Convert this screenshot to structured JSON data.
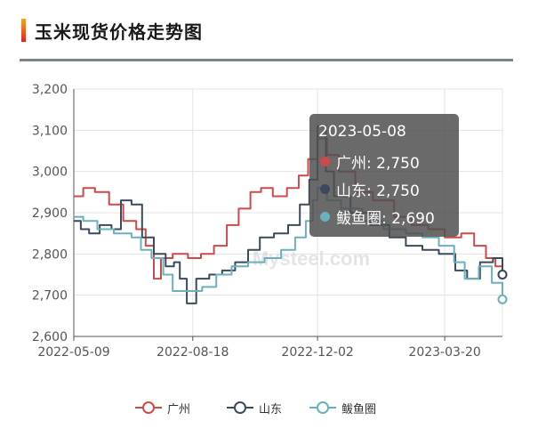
{
  "header": {
    "title": "玉米现货价格走势图"
  },
  "watermark": "Mysteel.com",
  "tooltip": {
    "date": "2023-05-08",
    "rows": [
      {
        "label": "广州: 2,750",
        "color": "#cc4a4a"
      },
      {
        "label": "山东: 2,750",
        "color": "#3b4a5c"
      },
      {
        "label": "鲅鱼圈: 2,690",
        "color": "#6ab0bd"
      }
    ]
  },
  "chart_data": {
    "type": "line",
    "ylim": [
      2600,
      3200
    ],
    "yticks": [
      "2,600",
      "2,700",
      "2,800",
      "2,900",
      "3,000",
      "3,100",
      "3,200"
    ],
    "xticks": [
      "2022-05-09",
      "2022-08-18",
      "2022-12-02",
      "2023-03-20"
    ],
    "xrange": [
      "2022-05-09",
      "2023-05-08"
    ],
    "grid": true,
    "legend_position": "bottom",
    "series": [
      {
        "name": "广州",
        "color": "#cc4a4a",
        "points": [
          [
            "2022-05-09",
            2940
          ],
          [
            "2022-05-17",
            2960
          ],
          [
            "2022-05-27",
            2950
          ],
          [
            "2022-06-08",
            2920
          ],
          [
            "2022-06-20",
            2880
          ],
          [
            "2022-07-01",
            2860
          ],
          [
            "2022-07-09",
            2820
          ],
          [
            "2022-07-16",
            2740
          ],
          [
            "2022-07-22",
            2790
          ],
          [
            "2022-08-01",
            2800
          ],
          [
            "2022-08-14",
            2790
          ],
          [
            "2022-08-25",
            2800
          ],
          [
            "2022-09-05",
            2820
          ],
          [
            "2022-09-16",
            2870
          ],
          [
            "2022-09-26",
            2910
          ],
          [
            "2022-10-06",
            2950
          ],
          [
            "2022-10-15",
            2960
          ],
          [
            "2022-10-25",
            2940
          ],
          [
            "2022-11-06",
            2960
          ],
          [
            "2022-11-16",
            2990
          ],
          [
            "2022-11-24",
            3030
          ],
          [
            "2022-12-02",
            3080
          ],
          [
            "2022-12-10",
            3040
          ],
          [
            "2022-12-20",
            3000
          ],
          [
            "2023-01-03",
            2950
          ],
          [
            "2023-01-18",
            2930
          ],
          [
            "2023-02-05",
            2890
          ],
          [
            "2023-02-20",
            2870
          ],
          [
            "2023-03-06",
            2860
          ],
          [
            "2023-03-20",
            2840
          ],
          [
            "2023-04-03",
            2850
          ],
          [
            "2023-04-14",
            2820
          ],
          [
            "2023-04-24",
            2790
          ],
          [
            "2023-05-02",
            2770
          ],
          [
            "2023-05-08",
            2750
          ]
        ]
      },
      {
        "name": "山东",
        "color": "#3b4a5c",
        "points": [
          [
            "2022-05-09",
            2880
          ],
          [
            "2022-05-15",
            2860
          ],
          [
            "2022-05-22",
            2850
          ],
          [
            "2022-05-31",
            2870
          ],
          [
            "2022-06-10",
            2860
          ],
          [
            "2022-06-18",
            2930
          ],
          [
            "2022-06-27",
            2920
          ],
          [
            "2022-07-06",
            2840
          ],
          [
            "2022-07-16",
            2800
          ],
          [
            "2022-07-26",
            2770
          ],
          [
            "2022-08-02",
            2780
          ],
          [
            "2022-08-07",
            2740
          ],
          [
            "2022-08-13",
            2680
          ],
          [
            "2022-08-21",
            2740
          ],
          [
            "2022-09-01",
            2750
          ],
          [
            "2022-09-12",
            2760
          ],
          [
            "2022-09-23",
            2780
          ],
          [
            "2022-10-04",
            2810
          ],
          [
            "2022-10-14",
            2840
          ],
          [
            "2022-10-26",
            2850
          ],
          [
            "2022-11-07",
            2870
          ],
          [
            "2022-11-17",
            2920
          ],
          [
            "2022-11-25",
            2980
          ],
          [
            "2022-12-02",
            3110
          ],
          [
            "2022-12-09",
            3000
          ],
          [
            "2022-12-16",
            2940
          ],
          [
            "2022-12-30",
            2900
          ],
          [
            "2023-01-16",
            2870
          ],
          [
            "2023-02-01",
            2840
          ],
          [
            "2023-02-15",
            2820
          ],
          [
            "2023-03-01",
            2810
          ],
          [
            "2023-03-15",
            2800
          ],
          [
            "2023-03-29",
            2760
          ],
          [
            "2023-04-08",
            2740
          ],
          [
            "2023-04-19",
            2780
          ],
          [
            "2023-04-30",
            2790
          ],
          [
            "2023-05-08",
            2750
          ]
        ]
      },
      {
        "name": "鲅鱼圈",
        "color": "#6ab0bd",
        "points": [
          [
            "2022-05-09",
            2890
          ],
          [
            "2022-05-17",
            2880
          ],
          [
            "2022-05-29",
            2860
          ],
          [
            "2022-06-12",
            2850
          ],
          [
            "2022-06-27",
            2840
          ],
          [
            "2022-07-05",
            2810
          ],
          [
            "2022-07-14",
            2790
          ],
          [
            "2022-07-24",
            2750
          ],
          [
            "2022-08-01",
            2710
          ],
          [
            "2022-08-14",
            2710
          ],
          [
            "2022-08-26",
            2720
          ],
          [
            "2022-09-07",
            2750
          ],
          [
            "2022-09-20",
            2770
          ],
          [
            "2022-10-04",
            2780
          ],
          [
            "2022-10-18",
            2790
          ],
          [
            "2022-11-01",
            2810
          ],
          [
            "2022-11-13",
            2840
          ],
          [
            "2022-11-22",
            2880
          ],
          [
            "2022-11-28",
            2930
          ],
          [
            "2022-12-02",
            2960
          ],
          [
            "2022-12-10",
            2930
          ],
          [
            "2022-12-22",
            2910
          ],
          [
            "2023-01-09",
            2880
          ],
          [
            "2023-01-27",
            2860
          ],
          [
            "2023-02-15",
            2850
          ],
          [
            "2023-03-01",
            2840
          ],
          [
            "2023-03-15",
            2820
          ],
          [
            "2023-03-28",
            2780
          ],
          [
            "2023-04-06",
            2740
          ],
          [
            "2023-04-18",
            2770
          ],
          [
            "2023-04-29",
            2730
          ],
          [
            "2023-05-08",
            2690
          ]
        ]
      }
    ]
  }
}
